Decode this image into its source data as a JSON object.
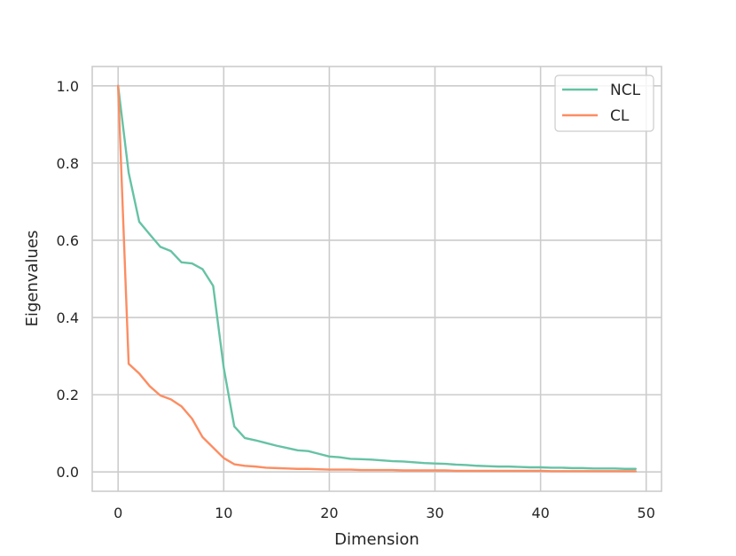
{
  "chart_data": {
    "type": "line",
    "title": "",
    "xlabel": "Dimension",
    "ylabel": "Eigenvalues",
    "xlim": [
      -2.45,
      51.45
    ],
    "ylim": [
      -0.05,
      1.05
    ],
    "xticks": [
      0,
      10,
      20,
      30,
      40,
      50
    ],
    "yticks": [
      0.0,
      0.2,
      0.4,
      0.6,
      0.8,
      1.0
    ],
    "xtick_labels": [
      "0",
      "10",
      "20",
      "30",
      "40",
      "50"
    ],
    "ytick_labels": [
      "0.0",
      "0.2",
      "0.4",
      "0.6",
      "0.8",
      "1.0"
    ],
    "grid": true,
    "legend_position": "top-right",
    "x": [
      0,
      1,
      2,
      3,
      4,
      5,
      6,
      7,
      8,
      9,
      10,
      11,
      12,
      13,
      14,
      15,
      16,
      17,
      18,
      19,
      20,
      21,
      22,
      23,
      24,
      25,
      26,
      27,
      28,
      29,
      30,
      31,
      32,
      33,
      34,
      35,
      36,
      37,
      38,
      39,
      40,
      41,
      42,
      43,
      44,
      45,
      46,
      47,
      48,
      49
    ],
    "series": [
      {
        "name": "NCL",
        "color": "#66c2a5",
        "values": [
          1.0,
          0.775,
          0.648,
          0.615,
          0.583,
          0.572,
          0.543,
          0.54,
          0.525,
          0.482,
          0.27,
          0.118,
          0.088,
          0.082,
          0.075,
          0.068,
          0.062,
          0.056,
          0.054,
          0.047,
          0.04,
          0.038,
          0.034,
          0.033,
          0.032,
          0.03,
          0.028,
          0.027,
          0.025,
          0.023,
          0.022,
          0.021,
          0.019,
          0.018,
          0.016,
          0.015,
          0.014,
          0.014,
          0.013,
          0.012,
          0.012,
          0.011,
          0.011,
          0.01,
          0.01,
          0.009,
          0.009,
          0.009,
          0.008,
          0.008
        ]
      },
      {
        "name": "CL",
        "color": "#fc8d62",
        "values": [
          1.0,
          0.28,
          0.255,
          0.222,
          0.198,
          0.188,
          0.17,
          0.138,
          0.09,
          0.063,
          0.036,
          0.02,
          0.016,
          0.014,
          0.011,
          0.01,
          0.009,
          0.008,
          0.008,
          0.007,
          0.006,
          0.006,
          0.006,
          0.005,
          0.005,
          0.005,
          0.005,
          0.004,
          0.004,
          0.004,
          0.004,
          0.004,
          0.003,
          0.003,
          0.003,
          0.003,
          0.003,
          0.003,
          0.003,
          0.003,
          0.003,
          0.002,
          0.002,
          0.002,
          0.002,
          0.002,
          0.002,
          0.002,
          0.002,
          0.002
        ]
      }
    ]
  }
}
